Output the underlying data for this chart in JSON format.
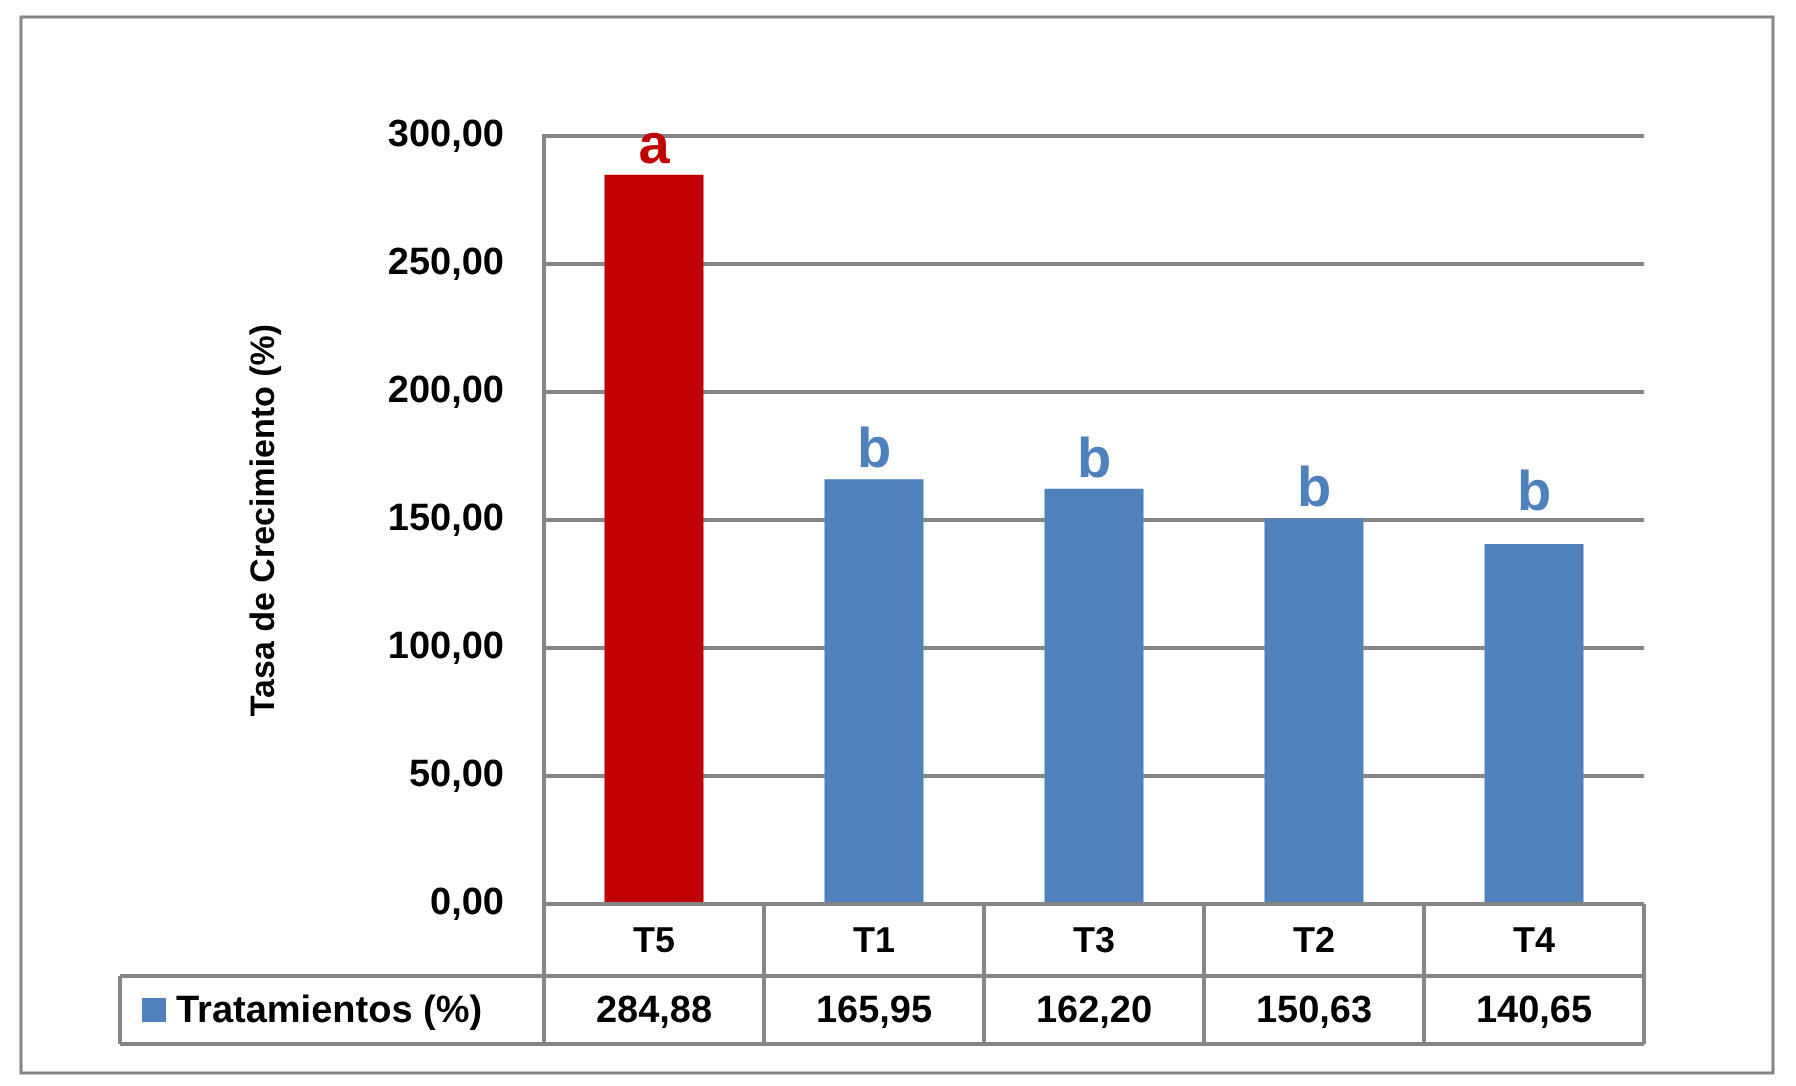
{
  "chart_data": {
    "type": "bar",
    "ylabel": "Tasa de Crecimiento (%)",
    "categories": [
      "T5",
      "T1",
      "T3",
      "T2",
      "T4"
    ],
    "series": [
      {
        "name": "Tratamientos (%)",
        "color": "#4f81bd",
        "colors": [
          "#c00000",
          "#4f81bd",
          "#4f81bd",
          "#4f81bd",
          "#4f81bd"
        ],
        "values": [
          284.88,
          165.95,
          162.2,
          150.63,
          140.65
        ],
        "value_labels": [
          "284,88",
          "165,95",
          "162,20",
          "150,63",
          "140,65"
        ]
      }
    ],
    "ylim": [
      0,
      300
    ],
    "yticks": [
      {
        "value": 0,
        "label": "0,00"
      },
      {
        "value": 50,
        "label": "50,00"
      },
      {
        "value": 100,
        "label": "100,00"
      },
      {
        "value": 150,
        "label": "150,00"
      },
      {
        "value": 200,
        "label": "200,00"
      },
      {
        "value": 250,
        "label": "250,00"
      },
      {
        "value": 300,
        "label": "300,00"
      }
    ],
    "grid": "y",
    "legend": "bottom",
    "annotations": [
      {
        "text": "a",
        "x": "T5",
        "y": 284.88
      },
      {
        "text": "b",
        "x": "T1",
        "y": 165.95
      },
      {
        "text": "b",
        "x": "T3",
        "y": 162.2
      },
      {
        "text": "b",
        "x": "T2",
        "y": 150.63
      },
      {
        "text": "b",
        "x": "T4",
        "y": 140.65
      }
    ]
  }
}
